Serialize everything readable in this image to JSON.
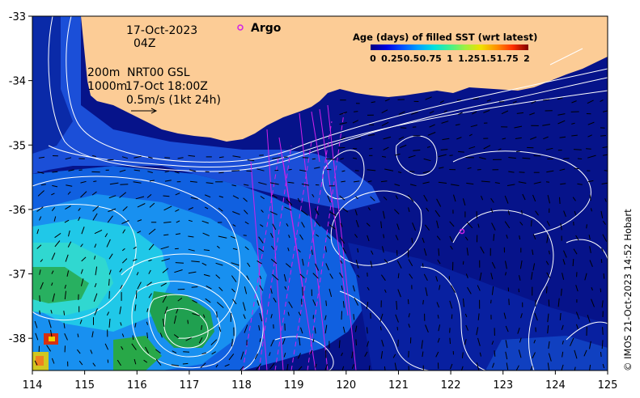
{
  "header": {
    "date": "17-Oct-2023",
    "time": "04Z"
  },
  "annotations": {
    "line1_left": "200m",
    "line1_right": "NRT00 GSL",
    "line2_left": "1000m",
    "line2_right": "17-Oct 18:00Z",
    "speed_scale": "0.5m/s (1kt 24h)"
  },
  "legend": {
    "argo_label": "Argo",
    "argo_color": "#e020e0"
  },
  "colorbar": {
    "title": "Age (days) of filled SST (wrt latest)",
    "tick_labels": [
      "0",
      "0.25",
      "0.5",
      "0.75",
      "1",
      "1.25",
      "1.5",
      "1.75",
      "2"
    ],
    "colors": [
      "#000080",
      "#0000d0",
      "#0040ff",
      "#0090ff",
      "#00d8f0",
      "#30e8a0",
      "#80f050",
      "#d0f020",
      "#ffd000",
      "#ff8000",
      "#ff3000",
      "#c00000",
      "#800000"
    ]
  },
  "map": {
    "land_color": "#fccc96",
    "ocean_base_color": "#06138a",
    "contour_color": "#ffffff",
    "track_color": "#d020e8",
    "x_axis_ticks": [
      "114",
      "115",
      "116",
      "117",
      "118",
      "119",
      "120",
      "121",
      "122",
      "123",
      "124",
      "125"
    ],
    "y_axis_ticks": [
      "-33",
      "-34",
      "-35",
      "-36",
      "-37",
      "-38"
    ],
    "lon_range": [
      114,
      125
    ],
    "lat_range": [
      -38.5,
      -33
    ]
  },
  "credit": "© IMOS 21-Oct-2023 14:52 Hobart"
}
